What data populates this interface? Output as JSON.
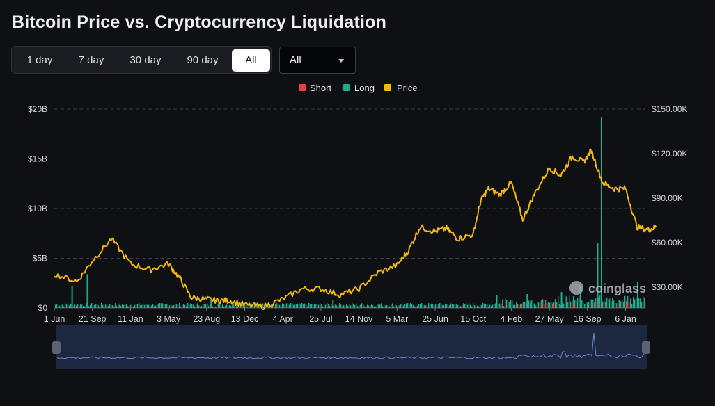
{
  "header": {
    "title": "Bitcoin Price vs. Cryptocurrency Liquidation"
  },
  "range_tabs": [
    {
      "label": "1 day",
      "active": false
    },
    {
      "label": "7 day",
      "active": false
    },
    {
      "label": "30 day",
      "active": false
    },
    {
      "label": "90 day",
      "active": false
    },
    {
      "label": "All",
      "active": true
    }
  ],
  "exchange_select": {
    "value": "All"
  },
  "watermark": "coinglass",
  "colors": {
    "short": "#e84142",
    "long": "#1fad8f",
    "price": "#f0b90b",
    "grid": "#3a3d45",
    "navigator": "#1c2740"
  },
  "chart_data": {
    "type": "bar+line",
    "title": "Bitcoin Price vs. Cryptocurrency Liquidation",
    "legend": [
      "Short",
      "Long",
      "Price"
    ],
    "legend_position": "top-center",
    "y_left": {
      "ticks": [
        "$0",
        "$5B",
        "$10B",
        "$15B",
        "$20B"
      ],
      "range": [
        0,
        20
      ]
    },
    "y_right": {
      "ticks": [
        "$30.00K",
        "$60.00K",
        "$90.00K",
        "$120.00K",
        "$150.00K"
      ],
      "range": [
        15,
        150
      ]
    },
    "x_ticks": [
      "1 Jun",
      "21 Sep",
      "11 Jan",
      "3 May",
      "23 Aug",
      "13 Dec",
      "4 Apr",
      "25 Jul",
      "14 Nov",
      "5 Mar",
      "25 Jun",
      "15 Oct",
      "4 Feb",
      "27 May",
      "16 Sep",
      "6 Jan"
    ],
    "grid": true,
    "price_series": {
      "name": "Price",
      "t": [
        0,
        0.6,
        1,
        1.5,
        2,
        2.5,
        3,
        3.3,
        3.6,
        4,
        4.3,
        4.6,
        5,
        5.5,
        6,
        6.5,
        7,
        7.5,
        8,
        8.5,
        9,
        9.3,
        9.6,
        10,
        10.3,
        10.6,
        11,
        11.2,
        11.4,
        11.7,
        12,
        12.3,
        12.6,
        13,
        13.3,
        13.6,
        13.9,
        14.1,
        14.4,
        14.7,
        15,
        15.3,
        15.6,
        15.8
      ],
      "values": [
        38,
        33,
        47,
        62,
        45,
        41,
        45,
        35,
        22,
        21,
        20,
        20,
        17,
        16,
        21,
        28,
        28,
        24,
        28,
        39,
        44,
        54,
        70,
        67,
        69,
        62,
        65,
        88,
        96,
        92,
        100,
        75,
        92,
        110,
        105,
        118,
        114,
        122,
        100,
        96,
        96,
        70,
        68,
        70
      ]
    },
    "liquidation_spikes": [
      {
        "t": 0.45,
        "value": 2.2,
        "side": "long"
      },
      {
        "t": 0.85,
        "value": 3.4,
        "side": "long"
      },
      {
        "t": 4.1,
        "value": 1.0,
        "side": "long"
      },
      {
        "t": 7.3,
        "value": 0.8,
        "side": "long"
      },
      {
        "t": 11.6,
        "value": 1.3,
        "side": "long"
      },
      {
        "t": 12.4,
        "value": 1.4,
        "side": "long"
      },
      {
        "t": 13.3,
        "value": 1.6,
        "side": "long"
      },
      {
        "t": 13.8,
        "value": 2.1,
        "side": "long"
      },
      {
        "t": 14.35,
        "value": 19.2,
        "side": "long"
      },
      {
        "t": 14.25,
        "value": 6.5,
        "side": "long"
      },
      {
        "t": 15.3,
        "value": 2.6,
        "side": "long"
      }
    ]
  }
}
